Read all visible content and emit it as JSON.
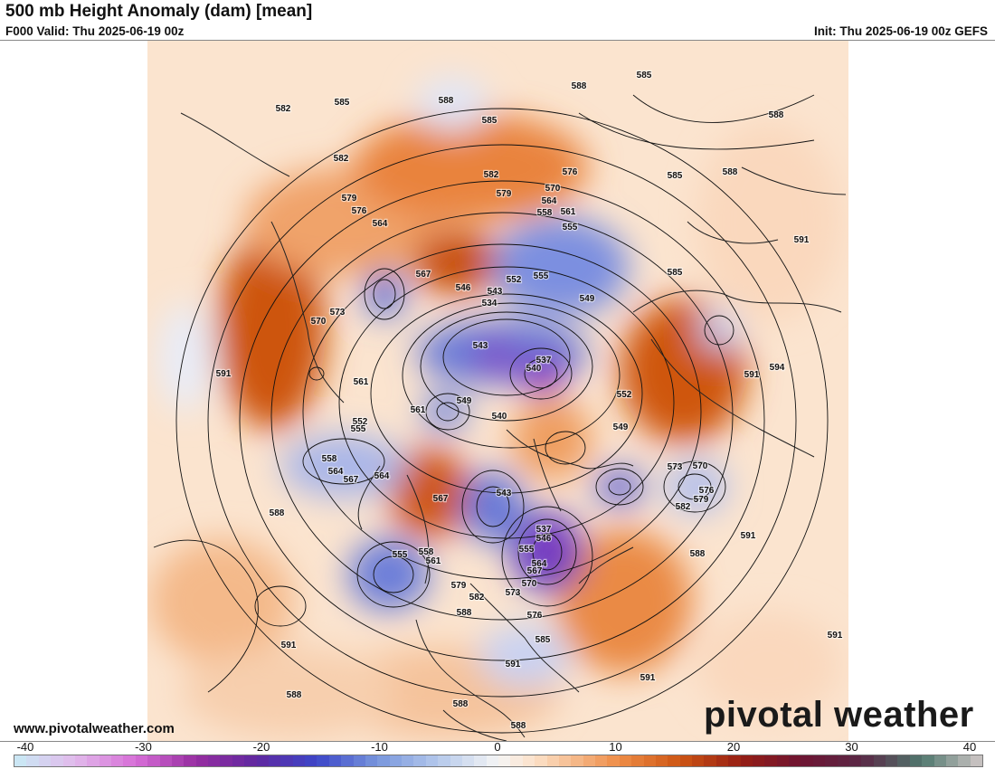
{
  "header": {
    "title": "500 mb Height Anomaly (dam) [mean]",
    "valid": "F000 Valid: Thu 2025-06-19 00z",
    "init": "Init: Thu 2025-06-19 00z GEFS"
  },
  "footer": {
    "source": "www.pivotalweather.com",
    "logo_text": "pivotal weather"
  },
  "colorbar": {
    "min": -40,
    "max": 40,
    "ticks": [
      "-40",
      "-30",
      "-20",
      "-10",
      "0",
      "10",
      "20",
      "30",
      "40"
    ]
  },
  "map": {
    "positive_anomaly_color": "#d65a12",
    "negative_anomaly_color": "#3a4fc8",
    "strong_negative_color": "#8a2fbf",
    "contour_labels": [
      "585",
      "588",
      "582",
      "585",
      "588",
      "588",
      "585",
      "582",
      "582",
      "576",
      "579",
      "585",
      "588",
      "579",
      "576",
      "564",
      "570",
      "564",
      "561",
      "558",
      "555",
      "591",
      "567",
      "555",
      "552",
      "546",
      "543",
      "549",
      "573",
      "570",
      "534",
      "585",
      "591",
      "543",
      "537",
      "540",
      "594",
      "591",
      "561",
      "552",
      "549",
      "552",
      "561",
      "555",
      "540",
      "549",
      "558",
      "564",
      "567",
      "573",
      "570",
      "564",
      "567",
      "576",
      "579",
      "588",
      "543",
      "582",
      "555",
      "558",
      "561",
      "537",
      "546",
      "555",
      "591",
      "564",
      "567",
      "570",
      "588",
      "573",
      "579",
      "582",
      "576",
      "588",
      "585",
      "591",
      "591",
      "591",
      "588",
      "591",
      "588",
      "588"
    ]
  }
}
